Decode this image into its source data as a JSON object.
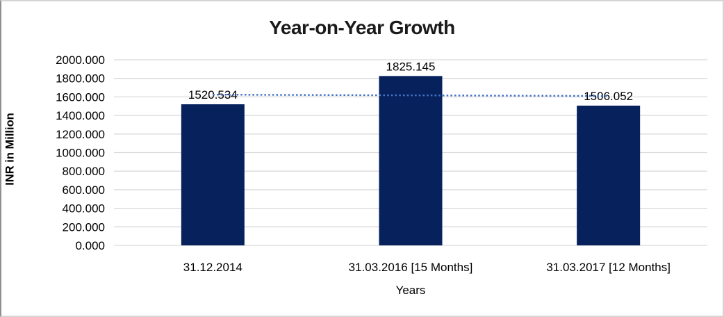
{
  "chart_data": {
    "type": "bar",
    "title": "Year-on-Year Growth",
    "xlabel": "Years",
    "ylabel": "INR in Million",
    "categories": [
      "31.12.2014",
      "31.03.2016 [15 Months]",
      "31.03.2017 [12 Months]"
    ],
    "values": [
      1520.534,
      1825.145,
      1506.052
    ],
    "data_labels": [
      "1520.534",
      "1825.145",
      "1506.052"
    ],
    "ylim": [
      0,
      2000
    ],
    "y_tick_step": 200,
    "y_ticks": [
      "2000.000",
      "1800.000",
      "1600.000",
      "1400.000",
      "1200.000",
      "1000.000",
      "800.000",
      "600.000",
      "400.000",
      "200.000",
      "0.000"
    ],
    "grid": true,
    "legend": false,
    "colors": {
      "bar": "#06215c",
      "gridline": "#d9d9d9",
      "trendline": "#4472c4",
      "text": "#000000",
      "title": "#1a1a1a"
    },
    "trendline": {
      "style": "dotted",
      "color": "#4472c4",
      "start_value": 1624,
      "end_value": 1610
    }
  }
}
